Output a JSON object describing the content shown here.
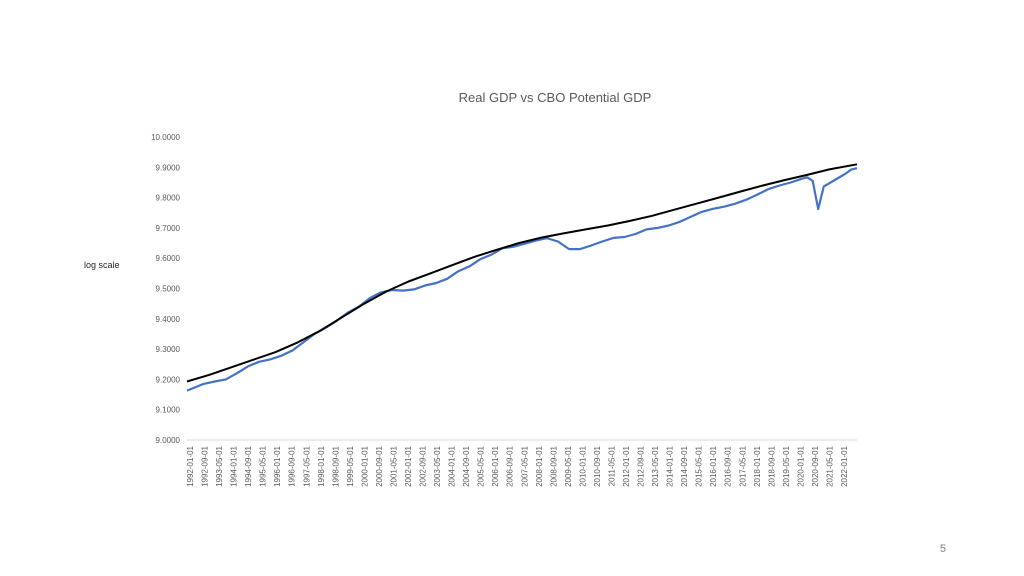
{
  "chart_data": {
    "type": "line",
    "title": "Real GDP vs CBO Potential GDP",
    "ylabel": "log scale",
    "xlabel": "",
    "ylim": [
      9.0,
      10.0
    ],
    "yticks": [
      "9.0000",
      "9.1000",
      "9.2000",
      "9.3000",
      "9.4000",
      "9.5000",
      "9.6000",
      "9.7000",
      "9.8000",
      "9.9000",
      "10.0000"
    ],
    "x_tick_labels": [
      "1992-01-01",
      "1992-09-01",
      "1993-05-01",
      "1994-01-01",
      "1994-09-01",
      "1995-05-01",
      "1996-01-01",
      "1996-09-01",
      "1997-05-01",
      "1998-01-01",
      "1998-09-01",
      "1999-05-01",
      "2000-01-01",
      "2000-09-01",
      "2001-05-01",
      "2002-01-01",
      "2002-09-01",
      "2003-05-01",
      "2004-01-01",
      "2004-09-01",
      "2005-05-01",
      "2006-01-01",
      "2006-09-01",
      "2007-05-01",
      "2008-01-01",
      "2008-09-01",
      "2009-05-01",
      "2010-01-01",
      "2010-09-01",
      "2011-05-01",
      "2012-01-01",
      "2012-09-01",
      "2013-05-01",
      "2014-01-01",
      "2014-09-01",
      "2015-05-01",
      "2016-01-01",
      "2016-09-01",
      "2017-05-01",
      "2018-01-01",
      "2018-09-01",
      "2019-05-01",
      "2020-01-01",
      "2020-09-01",
      "2021-05-01",
      "2022-01-01"
    ],
    "x_start": 1992.0,
    "x_end": 2022.25,
    "series": [
      {
        "name": "Real GDP",
        "color": "#4472C4",
        "points": [
          [
            1992.0,
            9.163
          ],
          [
            1992.75,
            9.185
          ],
          [
            1993.25,
            9.193
          ],
          [
            1993.75,
            9.2
          ],
          [
            1994.25,
            9.22
          ],
          [
            1994.75,
            9.243
          ],
          [
            1995.25,
            9.258
          ],
          [
            1995.75,
            9.266
          ],
          [
            1996.25,
            9.278
          ],
          [
            1996.75,
            9.295
          ],
          [
            1997.25,
            9.322
          ],
          [
            1997.75,
            9.35
          ],
          [
            1998.25,
            9.37
          ],
          [
            1998.75,
            9.393
          ],
          [
            1999.25,
            9.42
          ],
          [
            1999.75,
            9.44
          ],
          [
            2000.25,
            9.468
          ],
          [
            2000.75,
            9.487
          ],
          [
            2001.25,
            9.495
          ],
          [
            2001.75,
            9.493
          ],
          [
            2002.25,
            9.497
          ],
          [
            2002.75,
            9.51
          ],
          [
            2003.25,
            9.518
          ],
          [
            2003.75,
            9.532
          ],
          [
            2004.25,
            9.557
          ],
          [
            2004.75,
            9.573
          ],
          [
            2005.25,
            9.597
          ],
          [
            2005.75,
            9.612
          ],
          [
            2006.25,
            9.633
          ],
          [
            2006.75,
            9.638
          ],
          [
            2007.25,
            9.648
          ],
          [
            2007.75,
            9.658
          ],
          [
            2008.25,
            9.666
          ],
          [
            2008.75,
            9.655
          ],
          [
            2009.25,
            9.63
          ],
          [
            2009.75,
            9.63
          ],
          [
            2010.25,
            9.642
          ],
          [
            2010.75,
            9.655
          ],
          [
            2011.25,
            9.667
          ],
          [
            2011.75,
            9.67
          ],
          [
            2012.25,
            9.68
          ],
          [
            2012.75,
            9.695
          ],
          [
            2013.25,
            9.7
          ],
          [
            2013.75,
            9.708
          ],
          [
            2014.25,
            9.72
          ],
          [
            2014.75,
            9.737
          ],
          [
            2015.25,
            9.753
          ],
          [
            2015.75,
            9.763
          ],
          [
            2016.25,
            9.77
          ],
          [
            2016.75,
            9.78
          ],
          [
            2017.25,
            9.793
          ],
          [
            2017.75,
            9.81
          ],
          [
            2018.25,
            9.828
          ],
          [
            2018.75,
            9.84
          ],
          [
            2019.25,
            9.85
          ],
          [
            2019.75,
            9.862
          ],
          [
            2020.0,
            9.867
          ],
          [
            2020.25,
            9.855
          ],
          [
            2020.5,
            9.762
          ],
          [
            2020.75,
            9.837
          ],
          [
            2021.25,
            9.858
          ],
          [
            2021.75,
            9.88
          ],
          [
            2022.0,
            9.893
          ],
          [
            2022.25,
            9.897
          ]
        ]
      },
      {
        "name": "CBO Potential GDP",
        "color": "#000000",
        "points": [
          [
            1992.0,
            9.193
          ],
          [
            1993.0,
            9.215
          ],
          [
            1994.0,
            9.24
          ],
          [
            1995.0,
            9.265
          ],
          [
            1996.0,
            9.29
          ],
          [
            1997.0,
            9.322
          ],
          [
            1998.0,
            9.36
          ],
          [
            1999.0,
            9.405
          ],
          [
            2000.0,
            9.45
          ],
          [
            2001.0,
            9.49
          ],
          [
            2002.0,
            9.523
          ],
          [
            2003.0,
            9.55
          ],
          [
            2004.0,
            9.578
          ],
          [
            2005.0,
            9.605
          ],
          [
            2006.0,
            9.628
          ],
          [
            2007.0,
            9.65
          ],
          [
            2008.0,
            9.668
          ],
          [
            2009.0,
            9.682
          ],
          [
            2010.0,
            9.695
          ],
          [
            2011.0,
            9.708
          ],
          [
            2012.0,
            9.723
          ],
          [
            2013.0,
            9.74
          ],
          [
            2014.0,
            9.76
          ],
          [
            2015.0,
            9.78
          ],
          [
            2016.0,
            9.8
          ],
          [
            2017.0,
            9.82
          ],
          [
            2018.0,
            9.84
          ],
          [
            2019.0,
            9.858
          ],
          [
            2020.0,
            9.875
          ],
          [
            2021.0,
            9.893
          ],
          [
            2022.25,
            9.91
          ]
        ]
      }
    ]
  },
  "slide": {
    "page_number": "5"
  }
}
